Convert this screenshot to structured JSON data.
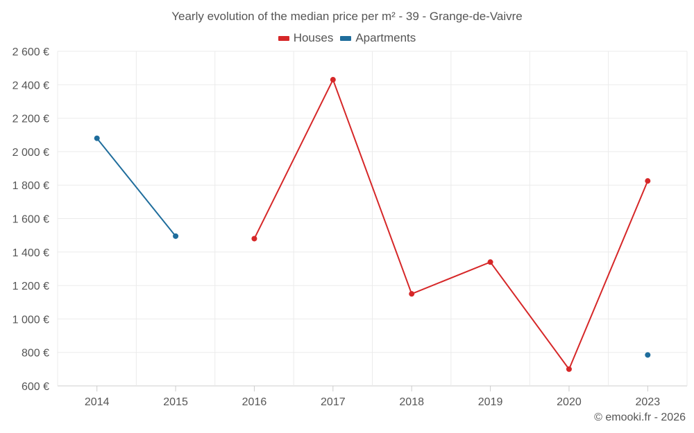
{
  "chart_data": {
    "type": "line",
    "title": "Yearly evolution of the median price per m² - 39 - Grange-de-Vaivre",
    "categories": [
      "2014",
      "2015",
      "2016",
      "2017",
      "2018",
      "2019",
      "2020",
      "2023"
    ],
    "series": [
      {
        "name": "Houses",
        "color": "#d62728",
        "values": [
          null,
          null,
          1480,
          2430,
          1150,
          1340,
          700,
          1825
        ],
        "connect_indices": [
          [
            2,
            3,
            4,
            5,
            6,
            7
          ]
        ]
      },
      {
        "name": "Apartments",
        "color": "#1f6d9c",
        "values": [
          2080,
          1495,
          null,
          null,
          null,
          null,
          null,
          785
        ],
        "connect_indices": [
          [
            0,
            1
          ]
        ]
      }
    ],
    "ylim": [
      600,
      2600
    ],
    "yticks": [
      600,
      800,
      1000,
      1200,
      1400,
      1600,
      1800,
      2000,
      2200,
      2400,
      2600
    ],
    "ytick_labels": [
      "600 €",
      "800 €",
      "1 000 €",
      "1 200 €",
      "1 400 €",
      "1 600 €",
      "1 800 €",
      "2 000 €",
      "2 200 €",
      "2 400 €",
      "2 600 €"
    ],
    "xlabel": "",
    "ylabel": "",
    "grid": true,
    "legend_position": "top-center"
  },
  "credit": "© emooki.fr - 2026"
}
